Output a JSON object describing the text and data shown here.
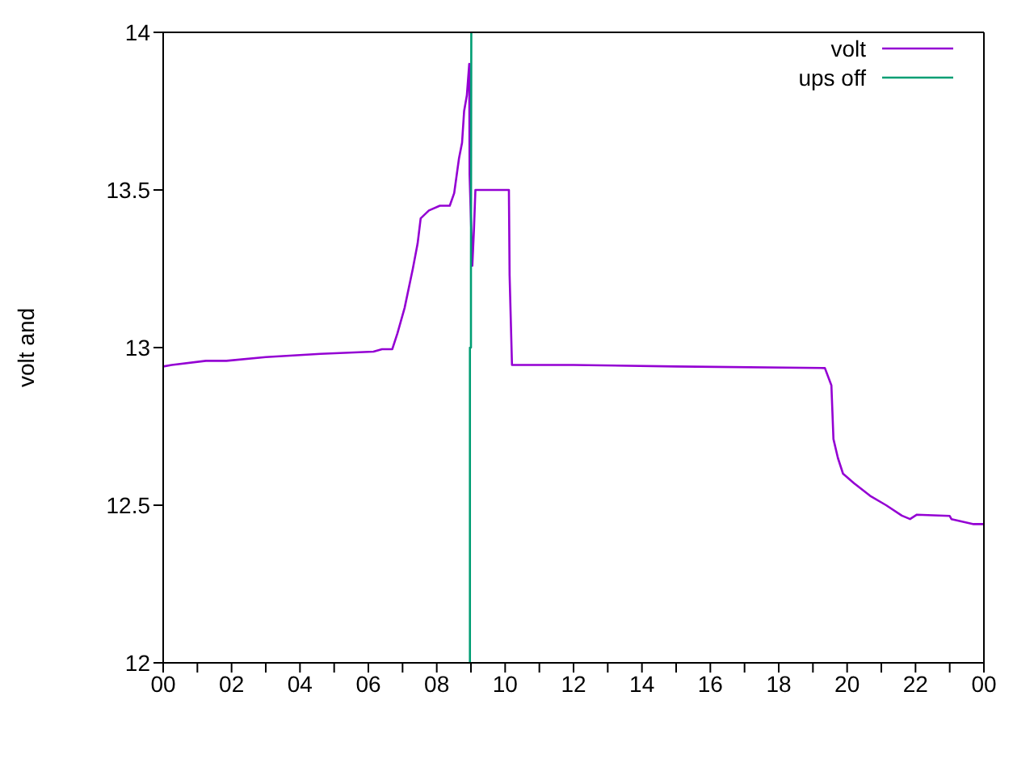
{
  "chart_data": {
    "type": "line",
    "ylabel": "volt and",
    "xlim": [
      0,
      24
    ],
    "ylim": [
      12,
      14
    ],
    "xticks": [
      {
        "value": 0,
        "label": "00"
      },
      {
        "value": 1,
        "label": null
      },
      {
        "value": 2,
        "label": "02"
      },
      {
        "value": 3,
        "label": null
      },
      {
        "value": 4,
        "label": "04"
      },
      {
        "value": 5,
        "label": null
      },
      {
        "value": 6,
        "label": "06"
      },
      {
        "value": 7,
        "label": null
      },
      {
        "value": 8,
        "label": "08"
      },
      {
        "value": 9,
        "label": null
      },
      {
        "value": 10,
        "label": "10"
      },
      {
        "value": 11,
        "label": null
      },
      {
        "value": 12,
        "label": "12"
      },
      {
        "value": 13,
        "label": null
      },
      {
        "value": 14,
        "label": "14"
      },
      {
        "value": 15,
        "label": null
      },
      {
        "value": 16,
        "label": "16"
      },
      {
        "value": 17,
        "label": null
      },
      {
        "value": 18,
        "label": "18"
      },
      {
        "value": 19,
        "label": null
      },
      {
        "value": 20,
        "label": "20"
      },
      {
        "value": 21,
        "label": null
      },
      {
        "value": 22,
        "label": "22"
      },
      {
        "value": 23,
        "label": null
      },
      {
        "value": 24,
        "label": "00"
      }
    ],
    "yticks": [
      12,
      12.5,
      13,
      13.5,
      14
    ],
    "legend": "top right",
    "marker": "none",
    "line_style": "solid",
    "series": [
      {
        "name": "volt",
        "color": "#9400d3",
        "x": [
          0,
          0.25,
          1.25,
          1.85,
          3.0,
          4.6,
          6.15,
          6.4,
          6.7,
          6.85,
          7.06,
          7.3,
          7.44,
          7.53,
          7.77,
          8.09,
          8.38,
          8.51,
          8.65,
          8.74,
          8.8,
          8.88,
          8.95,
          8.96,
          9.04,
          9.09,
          9.13,
          10.11,
          10.13,
          10.2,
          12,
          15,
          19.35,
          19.54,
          19.6,
          19.73,
          19.88,
          20.2,
          20.67,
          21.14,
          21.6,
          21.84,
          22.04,
          23.0,
          23.05,
          23.7,
          24
        ],
        "values": [
          12.94,
          12.945,
          12.958,
          12.958,
          12.97,
          12.98,
          12.987,
          12.995,
          12.995,
          13.045,
          13.126,
          13.25,
          13.33,
          13.41,
          13.435,
          13.45,
          13.45,
          13.49,
          13.6,
          13.65,
          13.75,
          13.8,
          13.9,
          13.55,
          13.26,
          13.38,
          13.5,
          13.5,
          13.23,
          12.945,
          12.945,
          12.94,
          12.935,
          12.88,
          12.71,
          12.65,
          12.6,
          12.57,
          12.53,
          12.5,
          12.467,
          12.456,
          12.47,
          12.466,
          12.456,
          12.44,
          12.44
        ]
      },
      {
        "name": "ups off",
        "color": "#009e73",
        "x": [
          8.97,
          8.97,
          9.0,
          9.0,
          9.01
        ],
        "values": [
          12,
          13.0,
          13.0,
          13.26,
          14
        ]
      }
    ]
  }
}
